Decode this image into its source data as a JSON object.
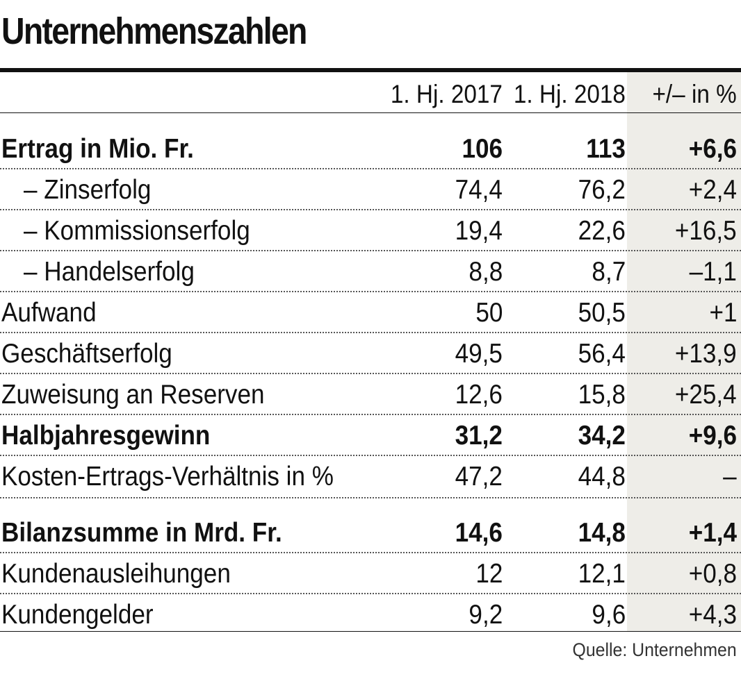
{
  "title": "Unternehmenszahlen",
  "source": "Quelle: Unternehmen",
  "colors": {
    "text": "#111111",
    "shade": "#eeede8"
  },
  "chart_data": {
    "type": "table",
    "title": "Unternehmenszahlen",
    "columns": [
      "",
      "1. Hj. 2017",
      "1. Hj. 2018",
      "+/– in %"
    ],
    "rows": [
      {
        "label": "Ertrag in Mio. Fr.",
        "v2017": "106",
        "v2018": "113",
        "diff": "+6,6",
        "bold": true,
        "indent": false
      },
      {
        "label": "– Zinserfolg",
        "v2017": "74,4",
        "v2018": "76,2",
        "diff": "+2,4",
        "bold": false,
        "indent": true
      },
      {
        "label": "– Kommissionserfolg",
        "v2017": "19,4",
        "v2018": "22,6",
        "diff": "+16,5",
        "bold": false,
        "indent": true
      },
      {
        "label": "– Handelserfolg",
        "v2017": "8,8",
        "v2018": "8,7",
        "diff": "–1,1",
        "bold": false,
        "indent": true
      },
      {
        "label": "Aufwand",
        "v2017": "50",
        "v2018": "50,5",
        "diff": "+1",
        "bold": false,
        "indent": false
      },
      {
        "label": "Geschäftserfolg",
        "v2017": "49,5",
        "v2018": "56,4",
        "diff": "+13,9",
        "bold": false,
        "indent": false
      },
      {
        "label": "Zuweisung an Reserven",
        "v2017": "12,6",
        "v2018": "15,8",
        "diff": "+25,4",
        "bold": false,
        "indent": false
      },
      {
        "label": "Halbjahresgewinn",
        "v2017": "31,2",
        "v2018": "34,2",
        "diff": "+9,6",
        "bold": true,
        "indent": false
      },
      {
        "label": "Kosten-Ertrags-Verhältnis in %",
        "v2017": "47,2",
        "v2018": "44,8",
        "diff": "–",
        "bold": false,
        "indent": false
      },
      {
        "label": "Bilanzsumme in Mrd. Fr.",
        "v2017": "14,6",
        "v2018": "14,8",
        "diff": "+1,4",
        "bold": true,
        "indent": false
      },
      {
        "label": "Kundenausleihungen",
        "v2017": "12",
        "v2018": "12,1",
        "diff": "+0,8",
        "bold": false,
        "indent": false
      },
      {
        "label": "Kundengelder",
        "v2017": "9,2",
        "v2018": "9,6",
        "diff": "+4,3",
        "bold": false,
        "indent": false
      }
    ]
  }
}
